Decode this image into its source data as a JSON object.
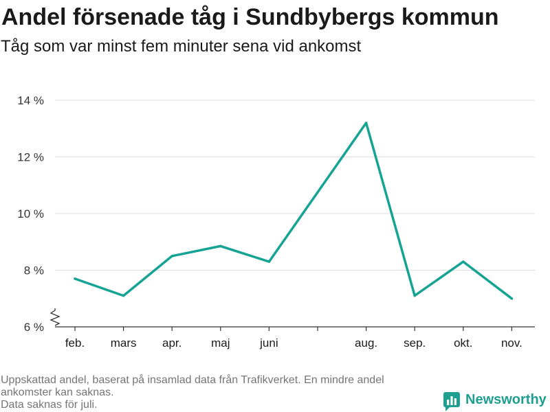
{
  "chart_data": {
    "type": "line",
    "title": "Andel försenade tåg i Sundbybergs kommun",
    "subtitle": "Tåg som var minst fem minuter sena vid ankomst",
    "categories": [
      "feb.",
      "mars",
      "apr.",
      "maj",
      "juni",
      "",
      "aug.",
      "sep.",
      "okt.",
      "nov."
    ],
    "series": [
      {
        "values": [
          7.7,
          7.1,
          8.5,
          8.85,
          8.3,
          null,
          13.2,
          7.1,
          8.3,
          7.0
        ],
        "color": "#15a394"
      }
    ],
    "ylim": [
      6,
      14
    ],
    "yticks": [
      6,
      8,
      10,
      12,
      14
    ],
    "yticklabels": [
      "6 %",
      "8 %",
      "10 %",
      "12 %",
      "14 %"
    ],
    "grid": true,
    "y_axis_break": true
  },
  "footer": {
    "note_lines": [
      "Uppskattad andel, baserat på insamlad data från Trafikverket. En mindre andel",
      "ankomster kan saknas.",
      "Data saknas för juli."
    ]
  },
  "logo": {
    "text": "Newsworthy",
    "icon": "newsworthy-logo-icon"
  },
  "colors": {
    "grid": "#dddddd",
    "axis": "#333333",
    "axis_text": "#333333",
    "text": "#1a1a1a",
    "muted": "#757575",
    "brand": "#1f9e92"
  }
}
